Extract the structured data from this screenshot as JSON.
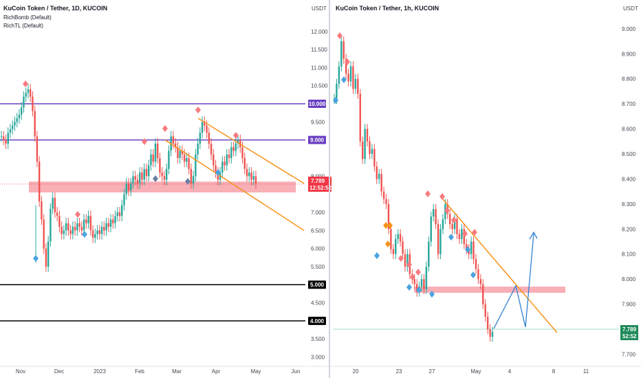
{
  "chart_data": [
    {
      "type": "candlestick",
      "title": "KuCoin Token / Tether, 1D, KUCOIN",
      "indicators": [
        "RichBomb (Default)",
        "RichTL (Default)"
      ],
      "currency": "USDT",
      "ylim": [
        2.8,
        12.3
      ],
      "y_ticks": [
        "12.000",
        "11.500",
        "11.000",
        "10.500",
        "9.500",
        "8.000",
        "7.000",
        "6.500",
        "6.000",
        "5.500",
        "4.500",
        "3.500",
        "3.000"
      ],
      "x_ticks": [
        "Nov",
        "Dec",
        "2023",
        "Feb",
        "Mar",
        "Apr",
        "May",
        "Jun"
      ],
      "levels": [
        {
          "label": "10.000",
          "value": 10.0,
          "color": "#6a3fc2"
        },
        {
          "label": "9.000",
          "value": 9.0,
          "color": "#6a3fc2"
        },
        {
          "label": "5.000",
          "value": 5.0,
          "color": "#000000"
        },
        {
          "label": "4.000",
          "value": 4.0,
          "color": "#000000"
        }
      ],
      "last_price": {
        "value": "7.789",
        "countdown": "12:52:52",
        "color": "#f23645"
      },
      "zone": [
        7.55,
        7.85
      ],
      "series": [
        {
          "values": [
            9.1,
            9.0,
            8.9,
            9.2,
            9.3,
            9.4,
            9.5,
            9.6,
            9.7,
            9.9,
            10.2,
            10.3,
            10.4,
            10.2,
            9.8,
            9.1,
            8.4,
            7.3,
            6.8,
            6.0,
            5.5,
            6.2,
            7.1,
            7.4,
            7.0,
            6.9,
            6.6,
            6.4,
            6.5,
            6.7,
            6.5,
            6.4,
            6.6,
            6.5,
            6.7,
            6.6,
            6.5,
            6.8,
            6.7,
            6.9,
            6.5,
            6.3,
            6.4,
            6.5,
            6.4,
            6.6,
            6.5,
            6.7,
            6.6,
            6.8,
            6.7,
            6.9,
            7.0,
            6.9,
            7.2,
            7.5,
            7.8,
            7.6,
            7.8,
            8.0,
            7.9,
            7.8,
            8.1,
            7.9,
            8.2,
            8.0,
            8.3,
            8.6,
            8.4,
            8.9,
            8.5,
            8.1,
            8.0,
            7.9,
            8.2,
            8.7,
            9.1,
            8.9,
            8.8,
            8.5,
            8.7,
            8.6,
            8.4,
            8.5,
            8.2,
            7.8,
            8.0,
            8.6,
            8.9,
            9.2,
            9.5,
            9.4,
            9.2,
            8.9,
            8.6,
            8.3,
            8.1,
            7.9,
            8.1,
            8.4,
            8.3,
            8.6,
            8.5,
            8.8,
            8.7,
            8.9,
            9.0,
            8.8,
            8.5,
            8.2,
            8.0,
            8.1,
            7.9,
            8.0,
            7.8
          ]
        }
      ]
    },
    {
      "type": "candlestick",
      "title": "KuCoin Token / Tether, 1h, KUCOIN",
      "currency": "USDT",
      "ylim": [
        7.66,
        9.06
      ],
      "y_ticks": [
        "9.000",
        "8.900",
        "8.800",
        "8.700",
        "8.600",
        "8.500",
        "8.400",
        "8.300",
        "8.200",
        "8.100",
        "8.000",
        "7.900",
        "7.700"
      ],
      "x_ticks": [
        "20",
        "23",
        "27",
        "May",
        "4",
        "8",
        "11"
      ],
      "last_price": {
        "value": "7.789",
        "countdown": "52:52",
        "color": "#1e8a5a"
      },
      "zone": [
        7.935,
        7.96
      ],
      "series": [
        {
          "values": [
            8.72,
            8.78,
            8.85,
            8.95,
            8.88,
            8.82,
            8.79,
            8.85,
            8.76,
            8.8,
            8.74,
            8.55,
            8.48,
            8.6,
            8.55,
            8.5,
            8.52,
            8.45,
            8.4,
            8.42,
            8.35,
            8.32,
            8.3,
            8.2,
            8.12,
            8.1,
            8.16,
            8.18,
            8.15,
            8.1,
            8.05,
            8.1,
            8.02,
            8.0,
            7.98,
            7.95,
            7.97,
            8.0,
            7.96,
            8.05,
            8.15,
            8.25,
            8.28,
            8.22,
            8.1,
            8.2,
            8.24,
            8.3,
            8.26,
            8.22,
            8.2,
            8.24,
            8.18,
            8.16,
            8.2,
            8.14,
            8.12,
            8.1,
            8.15,
            8.08,
            8.04,
            8.0,
            7.98,
            7.9,
            7.85,
            7.8,
            7.77,
            7.79
          ]
        }
      ],
      "projection": "zigzag"
    }
  ]
}
